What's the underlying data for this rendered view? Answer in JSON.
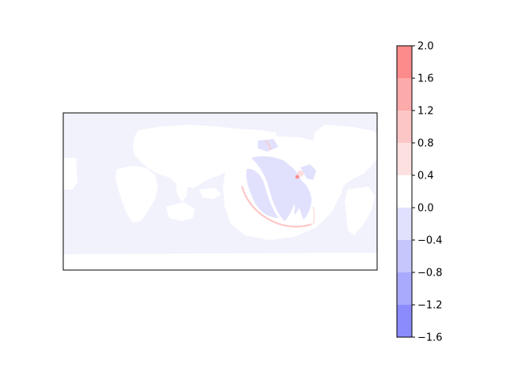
{
  "chart_data": {
    "type": "heatmap",
    "title": "",
    "xlabel": "",
    "ylabel": "",
    "map_axes_ticks": "none",
    "colorbar": {
      "orientation": "vertical",
      "placement": "right",
      "levels": [
        -1.6,
        -1.2,
        -0.8,
        -0.4,
        0.0,
        0.4,
        0.8,
        1.2,
        1.6,
        2.0
      ],
      "tick_labels": [
        "−1.6",
        "−1.2",
        "−0.8",
        "−0.4",
        "0.0",
        "0.4",
        "0.8",
        "1.2",
        "1.6",
        "2.0"
      ],
      "band_colors": [
        "#8b8bfd",
        "#a9a9fd",
        "#c6c6fd",
        "#e1e1fd",
        "#ffffff",
        "#fde1e1",
        "#fdc6c6",
        "#fdaaaa",
        "#fd8b8b"
      ]
    },
    "colors": {
      "land": "#ffffff",
      "ocean": "#f2f2fd",
      "negative_wave": "#e1e1fd",
      "positive_wave": "#fdc6c6",
      "source_peak": "#fd8b8b"
    }
  }
}
